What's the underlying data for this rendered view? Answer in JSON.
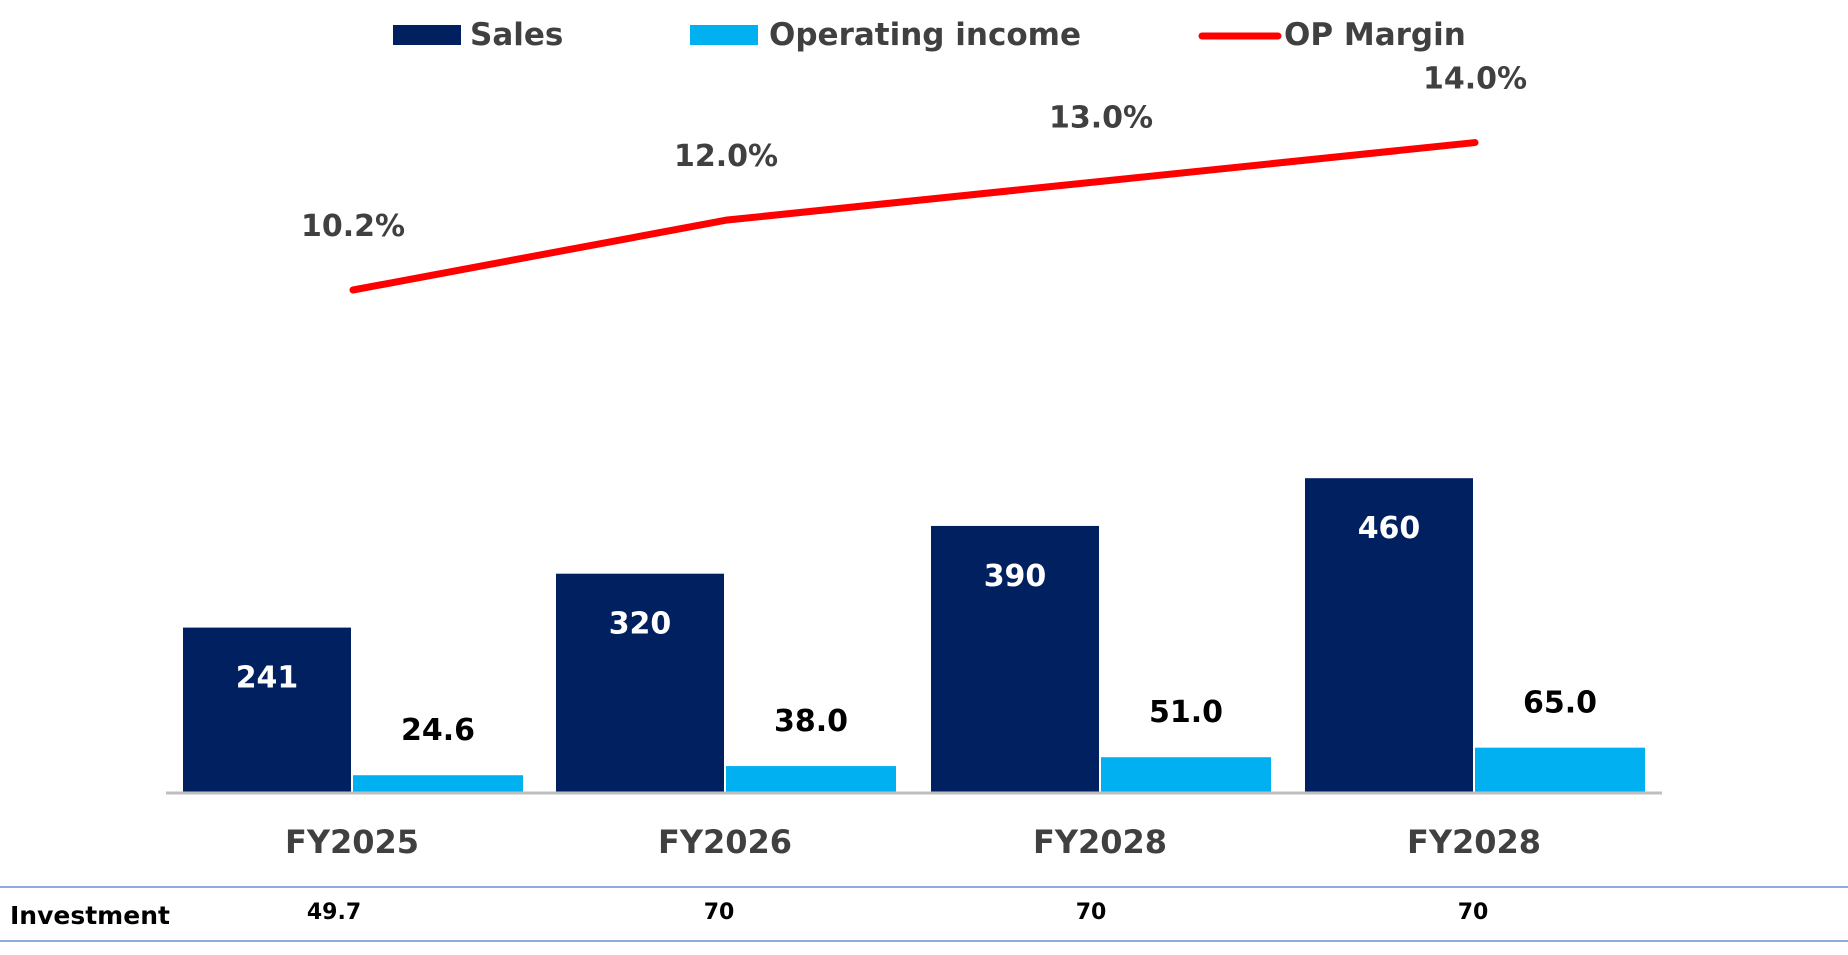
{
  "colors": {
    "sales": "#002060",
    "operating_income": "#00B0F0",
    "op_margin": "#FF0000",
    "label_dark": "#404040",
    "label_black": "#000000",
    "axis": "#BFBFBF",
    "table_rule": "#8FAADC"
  },
  "chart_data": {
    "type": "bar",
    "categories": [
      "FY2025",
      "FY2026",
      "FY2028",
      "FY2028"
    ],
    "series": [
      {
        "name": "Sales",
        "values": [
          241,
          320,
          390,
          460
        ],
        "type": "bar"
      },
      {
        "name": "Operating income",
        "values": [
          24.6,
          38.0,
          51.0,
          65.0
        ],
        "type": "bar"
      },
      {
        "name": "OP Margin",
        "values": [
          10.2,
          12.0,
          13.0,
          14.0
        ],
        "type": "line",
        "unit": "%"
      }
    ],
    "value_labels": {
      "sales": [
        "241",
        "320",
        "390",
        "460"
      ],
      "operating_income": [
        "24.6",
        "38.0",
        "51.0",
        "65.0"
      ],
      "op_margin": [
        "10.2%",
        "12.0%",
        "13.0%",
        "14.0%"
      ]
    },
    "legend_position": "top-center",
    "grid": false
  },
  "table": {
    "row_label": "Investment",
    "values": [
      "49.7",
      "70",
      "70",
      "70"
    ]
  }
}
